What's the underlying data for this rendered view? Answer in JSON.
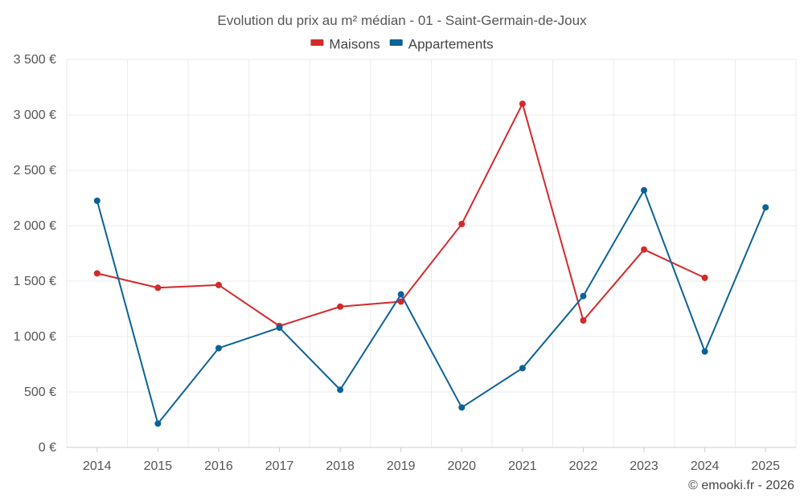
{
  "chart_data": {
    "type": "line",
    "title": "Evolution du prix au m² médian - 01 - Saint-Germain-de-Joux",
    "categories": [
      "2014",
      "2015",
      "2016",
      "2017",
      "2018",
      "2019",
      "2020",
      "2021",
      "2022",
      "2023",
      "2024",
      "2025"
    ],
    "ylim": [
      0,
      3500
    ],
    "yticks": [
      0,
      500,
      1000,
      1500,
      2000,
      2500,
      3000,
      3500
    ],
    "ytick_labels": [
      "0 €",
      "500 €",
      "1 000 €",
      "1 500 €",
      "2 000 €",
      "2 500 €",
      "3 000 €",
      "3 500 €"
    ],
    "legend_position": "top-center",
    "grid": true,
    "series": [
      {
        "name": "Maisons",
        "color": "#d32a2a",
        "values": [
          1570,
          1440,
          1465,
          1095,
          1270,
          1315,
          2015,
          3100,
          1145,
          1785,
          1530,
          null
        ]
      },
      {
        "name": "Appartements",
        "color": "#0b6296",
        "values": [
          2225,
          215,
          895,
          1080,
          520,
          1380,
          360,
          715,
          1365,
          2320,
          865,
          2165
        ]
      }
    ]
  },
  "copyright": "© emooki.fr - 2026"
}
